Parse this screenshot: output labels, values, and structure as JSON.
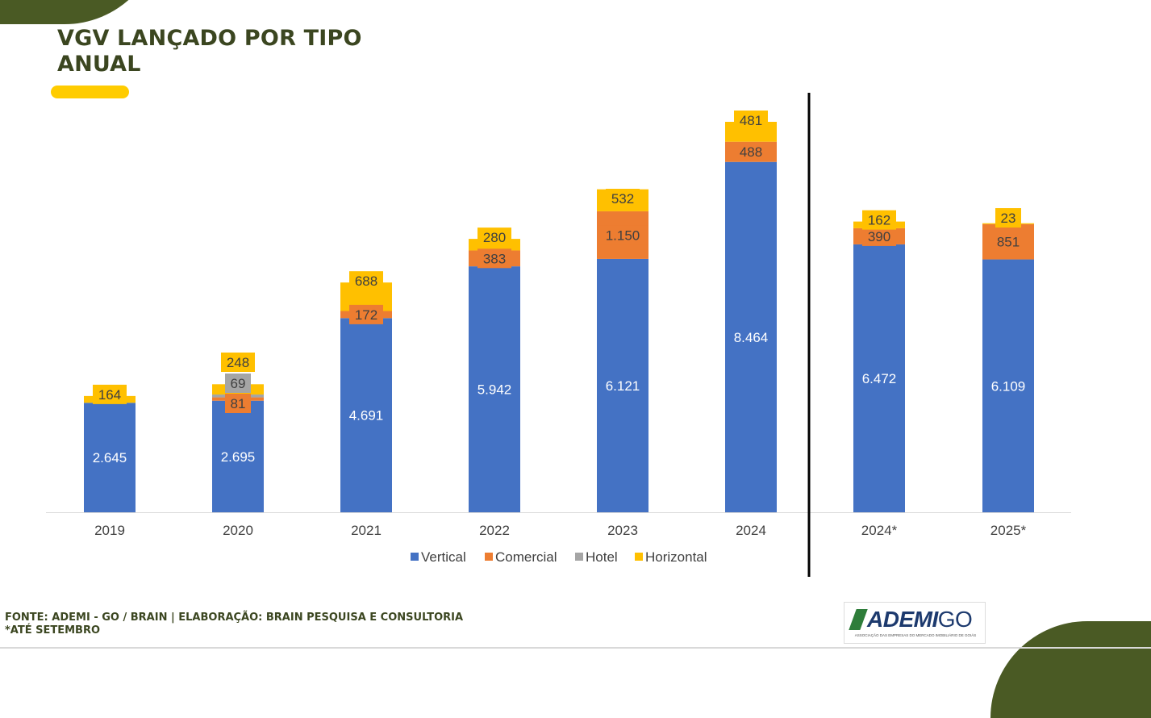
{
  "page": {
    "title_line1": "VGV LANÇADO POR TIPO",
    "title_line2": "ANUAL",
    "footer_source": "FONTE: ADEMI - GO / BRAIN  | ELABORAÇÃO: BRAIN PESQUISA E CONSULTORIA",
    "footer_note": "*ATÉ SETEMBRO",
    "logo_text_bold": "ADEMI",
    "logo_text_light": "GO",
    "logo_tagline": "ASSOCIAÇÃO DAS EMPRESAS DO MERCADO IMOBILIÁRIO DE GOIÁS"
  },
  "colors": {
    "accent_green": "#4a5a24",
    "accent_yellow": "#ffcc00",
    "title": "#3b4620"
  },
  "chart_data": {
    "type": "bar",
    "stacked": true,
    "categories": [
      "2019",
      "2020",
      "2021",
      "2022",
      "2023",
      "2024",
      "2024*",
      "2025*"
    ],
    "series": [
      {
        "name": "Vertical",
        "color": "#4472c4",
        "values": [
          2645,
          2695,
          4691,
          5942,
          6121,
          8464,
          6472,
          6109
        ],
        "labels": [
          "2.645",
          "2.695",
          "4.691",
          "5.942",
          "6.121",
          "8.464",
          "6.472",
          "6.109"
        ]
      },
      {
        "name": "Comercial",
        "color": "#ed7d31",
        "values": [
          0,
          81,
          172,
          383,
          1150,
          488,
          390,
          851
        ],
        "labels": [
          "",
          "81",
          "172",
          "383",
          "1.150",
          "488",
          "390",
          "851"
        ]
      },
      {
        "name": "Hotel",
        "color": "#a5a5a5",
        "values": [
          0,
          69,
          0,
          0,
          0,
          0,
          0,
          0
        ],
        "labels": [
          "",
          "69",
          "",
          "",
          "",
          "",
          "",
          ""
        ]
      },
      {
        "name": "Horizontal",
        "color": "#ffc000",
        "values": [
          164,
          248,
          688,
          280,
          532,
          481,
          162,
          23
        ],
        "labels": [
          "164",
          "248",
          "688",
          "280",
          "532",
          "481",
          "162",
          "23"
        ]
      }
    ],
    "divider_after_category": "2024",
    "legend_position": "bottom",
    "ylim": [
      0,
      9550
    ],
    "grid": false
  }
}
